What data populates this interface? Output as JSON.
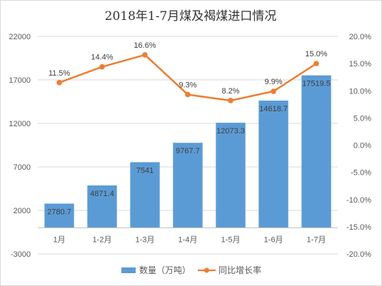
{
  "chart_data": {
    "type": "bar",
    "title": "2018年1-7月煤及褐煤进口情况",
    "categories": [
      "1月",
      "1-2月",
      "1-3月",
      "1-4月",
      "1-5月",
      "1-6月",
      "1-7月"
    ],
    "series": [
      {
        "name": "数量（万吨）",
        "type": "bar",
        "axis": "left",
        "color": "#5b9bd5",
        "values": [
          2780.7,
          4871.4,
          7541,
          9767.7,
          12073.3,
          14618.7,
          17519.5
        ],
        "labels": [
          "2780.7",
          "4871.4",
          "7541",
          "9767.7",
          "12073.3",
          "14618.7",
          "17519.5"
        ]
      },
      {
        "name": "同比增长率",
        "type": "line",
        "axis": "right",
        "color": "#ed7d31",
        "values": [
          11.5,
          14.4,
          16.6,
          9.3,
          8.2,
          9.9,
          15.0
        ],
        "labels": [
          "11.5%",
          "14.4%",
          "16.6%",
          "9.3%",
          "8.2%",
          "9.9%",
          "15.0%"
        ]
      }
    ],
    "y_left": {
      "ylim": [
        -3000,
        22000
      ],
      "ticks": [
        -3000,
        2000,
        7000,
        12000,
        17000,
        22000
      ],
      "tick_labels": [
        "-3000",
        "2000",
        "7000",
        "12000",
        "17000",
        "22000"
      ]
    },
    "y_right": {
      "ylim": [
        -20,
        20
      ],
      "ticks": [
        -20,
        -15,
        -10,
        -5,
        0,
        5,
        10,
        15,
        20
      ],
      "tick_labels": [
        "-20.0%",
        "-15.0%",
        "-10.0%",
        "-5.0%",
        "0.0%",
        "5.0%",
        "10.0%",
        "15.0%",
        "20.0%"
      ]
    },
    "grid": true,
    "legend": "bottom"
  }
}
